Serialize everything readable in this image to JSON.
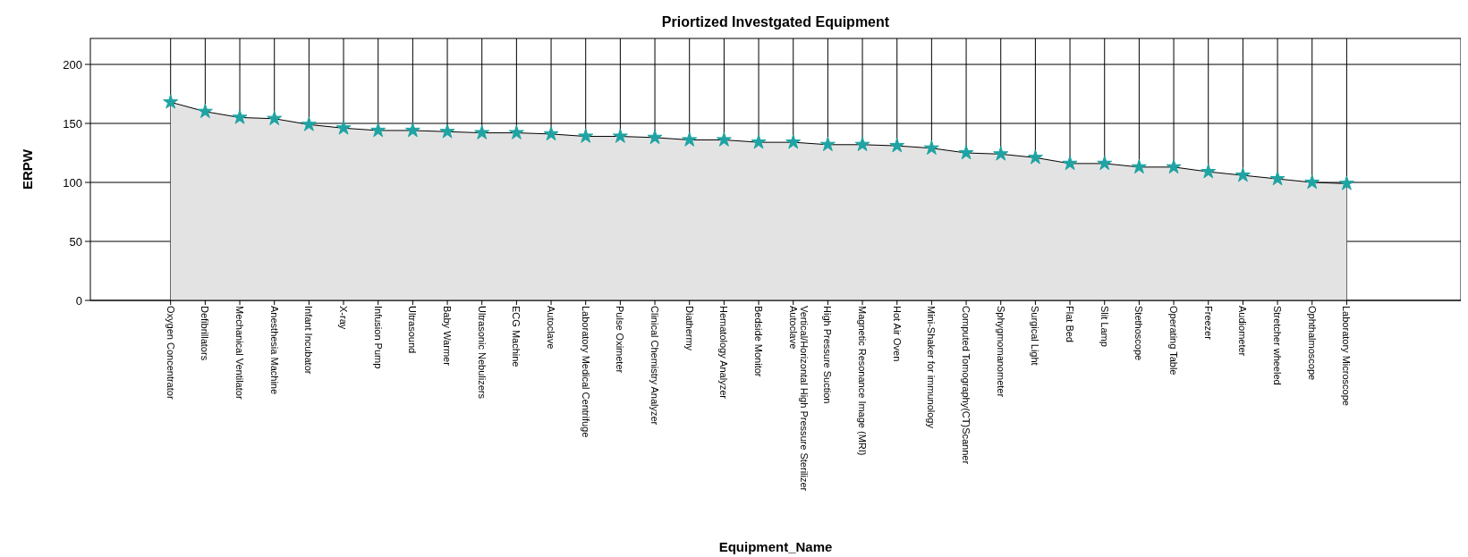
{
  "chart_data": {
    "type": "area",
    "title": "Priortized Investgated Equipment",
    "xlabel": "Equipment_Name",
    "ylabel": "ERPW",
    "categories": [
      "Oxygen Concentrator",
      "Defibrillators",
      "Mechanical Ventilator",
      "Anesthesia Machine",
      "Infant Incubator",
      "X-ray",
      "Infusion Pump",
      "Ultrasound",
      "Baby Warmer",
      "Ultrasonic Nebulizers",
      "ECG Machine",
      "Autoclave",
      "Laboratory Medical Centrifuge",
      "Pulse Oximeter",
      "Clinical Chemistry Analyzer",
      "Diathermy",
      "Hematology Analyzer",
      "Bedside Monitor",
      "Vertical/Horizontal High Pressure Sterilizer Autoclave",
      "High Pressure Suction",
      "Magnetic Resonance Image (MRI)",
      "Hot Air Oven",
      "Mini-Shaker for immunology",
      "Computed Tomography(CT)Scanner",
      "Sphygmomanometer",
      "Surgical Light",
      "Flat Bed",
      "Slit Lamp",
      "Stethoscope",
      "Operating Table",
      "Freezer",
      "Audiometer",
      "Stretcher wheeled",
      "Ophthalmoscope",
      "Laboratory Microscope"
    ],
    "series": [
      {
        "color": "#e3e3e3",
        "values": [
          168,
          160,
          155,
          154,
          149,
          146,
          144,
          144,
          143,
          142,
          142,
          141,
          139,
          139,
          138,
          136,
          136,
          134,
          134,
          132,
          132,
          131,
          129,
          125,
          124,
          121,
          116,
          116,
          113,
          113,
          109,
          106,
          103,
          100,
          99
        ]
      }
    ],
    "ylim": [
      0,
      222
    ],
    "yticks": [
      0,
      50,
      100,
      150,
      200
    ],
    "grid": true,
    "marker": "star"
  }
}
